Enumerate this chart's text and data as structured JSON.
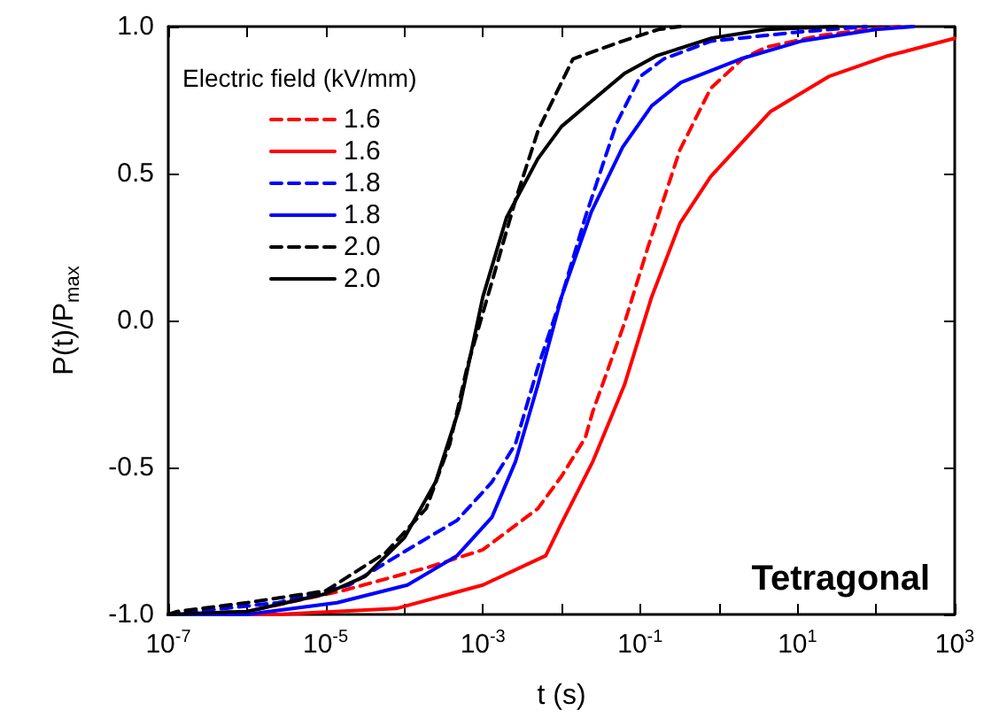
{
  "chart_data": {
    "type": "line",
    "xlabel": "t (s)",
    "ylabel": "P(t)/P$_{max}$",
    "legend_title": "Electric field (kV/mm)",
    "annotations": [
      "Tetragonal"
    ],
    "log": "x",
    "grid": false,
    "legend": "top left",
    "marker": "none",
    "xlim": [
      1e-07,
      1000
    ],
    "ylim": [
      -1,
      1
    ],
    "xticks": [
      {
        "value": 1e-07,
        "label": "10$^{-7}$"
      },
      {
        "value": 1e-06,
        "label": null
      },
      {
        "value": 1e-05,
        "label": "10$^{-5}$"
      },
      {
        "value": 0.0001,
        "label": null
      },
      {
        "value": 0.001,
        "label": "10$^{-3}$"
      },
      {
        "value": 0.01,
        "label": null
      },
      {
        "value": 0.1,
        "label": "10$^{-1}$"
      },
      {
        "value": 1,
        "label": null
      },
      {
        "value": 10,
        "label": "10$^{1}$"
      },
      {
        "value": 100,
        "label": null
      },
      {
        "value": 1000,
        "label": "10$^{3}$"
      }
    ],
    "yticks": [
      {
        "value": -1,
        "label": "-1.0"
      },
      {
        "value": -0.5,
        "label": "-0.5"
      },
      {
        "value": 0,
        "label": "0.0"
      },
      {
        "value": 0.5,
        "label": "0.5"
      },
      {
        "value": 1,
        "label": "1.0"
      }
    ],
    "series": [
      {
        "name": "1.6",
        "color": "#ff0000",
        "line_style": "dashed",
        "x": [
          1e-07,
          1e-06,
          1.6e-05,
          0.0002,
          0.001,
          0.005,
          0.01,
          0.02,
          0.025,
          0.063,
          0.126,
          0.32,
          0.79,
          2,
          4,
          20,
          79,
          200
        ],
        "values": [
          -1,
          -0.99,
          -0.92,
          -0.84,
          -0.78,
          -0.64,
          -0.53,
          -0.4,
          -0.31,
          -0.01,
          0.25,
          0.58,
          0.79,
          0.89,
          0.93,
          0.97,
          0.99,
          1
        ]
      },
      {
        "name": "1.6",
        "color": "#ff0000",
        "line_style": "solid",
        "x": [
          1e-07,
          2.5e-06,
          7.9e-05,
          0.001,
          0.0063,
          0.01,
          0.025,
          0.063,
          0.14,
          0.32,
          0.79,
          4.5,
          25,
          140,
          1000
        ],
        "values": [
          -1,
          -1,
          -0.98,
          -0.9,
          -0.8,
          -0.69,
          -0.48,
          -0.22,
          0.08,
          0.33,
          0.49,
          0.71,
          0.83,
          0.9,
          0.96
        ]
      },
      {
        "name": "1.8",
        "color": "#0000ff",
        "line_style": "dashed",
        "x": [
          1e-07,
          2.5e-06,
          2e-05,
          0.00011,
          0.00047,
          0.0013,
          0.0026,
          0.005,
          0.01,
          0.02,
          0.05,
          0.1,
          0.2,
          0.79,
          9,
          75
        ],
        "values": [
          -1,
          -0.96,
          -0.9,
          -0.78,
          -0.68,
          -0.55,
          -0.42,
          -0.16,
          0.08,
          0.35,
          0.67,
          0.83,
          0.89,
          0.95,
          0.98,
          1
        ]
      },
      {
        "name": "1.8",
        "color": "#0000ff",
        "line_style": "solid",
        "x": [
          1e-07,
          1e-06,
          1.4e-05,
          0.00011,
          0.00047,
          0.0013,
          0.0026,
          0.005,
          0.01,
          0.024,
          0.06,
          0.14,
          0.33,
          1.9,
          11,
          100,
          300
        ],
        "values": [
          -1,
          -1,
          -0.96,
          -0.9,
          -0.8,
          -0.67,
          -0.48,
          -0.22,
          0.08,
          0.37,
          0.59,
          0.73,
          0.81,
          0.89,
          0.95,
          0.99,
          1
        ]
      },
      {
        "name": "2.0",
        "color": "#000000",
        "line_style": "dashed",
        "x": [
          1e-07,
          1.3e-07,
          1e-06,
          1e-05,
          5.8e-05,
          0.00019,
          0.00038,
          0.00063,
          0.0013,
          0.0026,
          0.0051,
          0.014,
          0.059,
          0.17,
          0.32
        ],
        "values": [
          -1,
          -0.99,
          -0.96,
          -0.92,
          -0.79,
          -0.64,
          -0.42,
          -0.16,
          0.13,
          0.41,
          0.65,
          0.89,
          0.95,
          0.99,
          1
        ]
      },
      {
        "name": "2.0",
        "color": "#000000",
        "line_style": "solid",
        "x": [
          1e-07,
          1e-06,
          1e-05,
          3.2e-05,
          0.0001,
          0.00025,
          0.0005,
          0.001,
          0.002,
          0.005,
          0.01,
          0.025,
          0.063,
          0.16,
          0.79,
          4,
          32
        ],
        "values": [
          -1,
          -0.99,
          -0.93,
          -0.87,
          -0.74,
          -0.55,
          -0.3,
          0.08,
          0.35,
          0.55,
          0.66,
          0.75,
          0.84,
          0.9,
          0.96,
          0.99,
          1
        ]
      }
    ]
  }
}
